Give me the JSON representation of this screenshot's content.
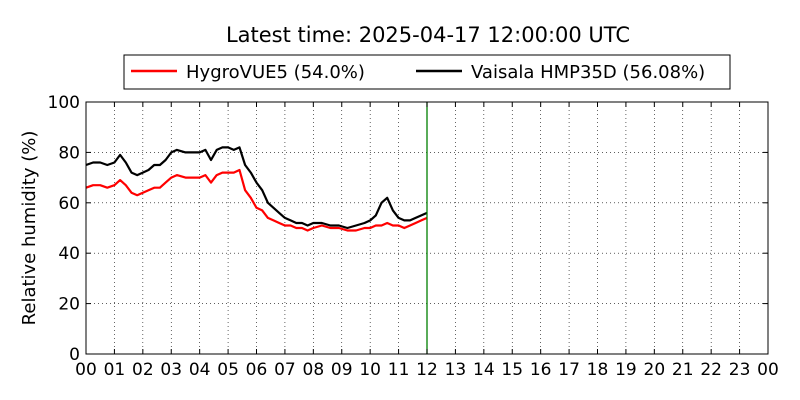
{
  "chart_data": {
    "type": "line",
    "title": "Latest time: 2025-04-17 12:00:00 UTC",
    "xlabel": "",
    "ylabel": "Relative humidity (%)",
    "xlim": [
      0,
      24
    ],
    "ylim": [
      0,
      100
    ],
    "x_ticks": [
      "00",
      "01",
      "02",
      "03",
      "04",
      "05",
      "06",
      "07",
      "08",
      "09",
      "10",
      "11",
      "12",
      "13",
      "14",
      "15",
      "16",
      "17",
      "18",
      "19",
      "20",
      "21",
      "22",
      "23",
      "00"
    ],
    "y_ticks": [
      0,
      20,
      40,
      60,
      80,
      100
    ],
    "grid": true,
    "legend_position": "top",
    "current_time_marker": {
      "x": 12,
      "color": "#008000"
    },
    "series": [
      {
        "name": "HygroVUE5 (54.0%)",
        "color": "#ff0000",
        "x": [
          0.0,
          0.25,
          0.5,
          0.75,
          1.0,
          1.2,
          1.4,
          1.6,
          1.8,
          2.0,
          2.2,
          2.4,
          2.6,
          2.8,
          3.0,
          3.2,
          3.5,
          3.8,
          4.0,
          4.2,
          4.4,
          4.6,
          4.8,
          5.0,
          5.2,
          5.4,
          5.6,
          5.8,
          6.0,
          6.2,
          6.4,
          6.6,
          6.8,
          7.0,
          7.2,
          7.4,
          7.6,
          7.8,
          8.0,
          8.3,
          8.6,
          8.9,
          9.2,
          9.5,
          9.8,
          10.0,
          10.2,
          10.4,
          10.6,
          10.8,
          11.0,
          11.2,
          11.4,
          11.6,
          11.8,
          12.0
        ],
        "y": [
          66,
          67,
          67,
          66,
          67,
          69,
          67,
          64,
          63,
          64,
          65,
          66,
          66,
          68,
          70,
          71,
          70,
          70,
          70,
          71,
          68,
          71,
          72,
          72,
          72,
          73,
          65,
          62,
          58,
          57,
          54,
          53,
          52,
          51,
          51,
          50,
          50,
          49,
          50,
          51,
          50,
          50,
          49,
          49,
          50,
          50,
          51,
          51,
          52,
          51,
          51,
          50,
          51,
          52,
          53,
          54
        ]
      },
      {
        "name": "Vaisala HMP35D (56.08%)",
        "color": "#000000",
        "x": [
          0.0,
          0.25,
          0.5,
          0.75,
          1.0,
          1.2,
          1.4,
          1.6,
          1.8,
          2.0,
          2.2,
          2.4,
          2.6,
          2.8,
          3.0,
          3.2,
          3.5,
          3.8,
          4.0,
          4.2,
          4.4,
          4.6,
          4.8,
          5.0,
          5.2,
          5.4,
          5.6,
          5.8,
          6.0,
          6.2,
          6.4,
          6.6,
          6.8,
          7.0,
          7.2,
          7.4,
          7.6,
          7.8,
          8.0,
          8.3,
          8.6,
          8.9,
          9.2,
          9.5,
          9.8,
          10.0,
          10.2,
          10.4,
          10.6,
          10.8,
          11.0,
          11.2,
          11.4,
          11.6,
          11.8,
          12.0
        ],
        "y": [
          75,
          76,
          76,
          75,
          76,
          79,
          76,
          72,
          71,
          72,
          73,
          75,
          75,
          77,
          80,
          81,
          80,
          80,
          80,
          81,
          77,
          81,
          82,
          82,
          81,
          82,
          75,
          72,
          68,
          65,
          60,
          58,
          56,
          54,
          53,
          52,
          52,
          51,
          52,
          52,
          51,
          51,
          50,
          51,
          52,
          53,
          55,
          60,
          62,
          57,
          54,
          53,
          53,
          54,
          55,
          56
        ]
      }
    ]
  }
}
